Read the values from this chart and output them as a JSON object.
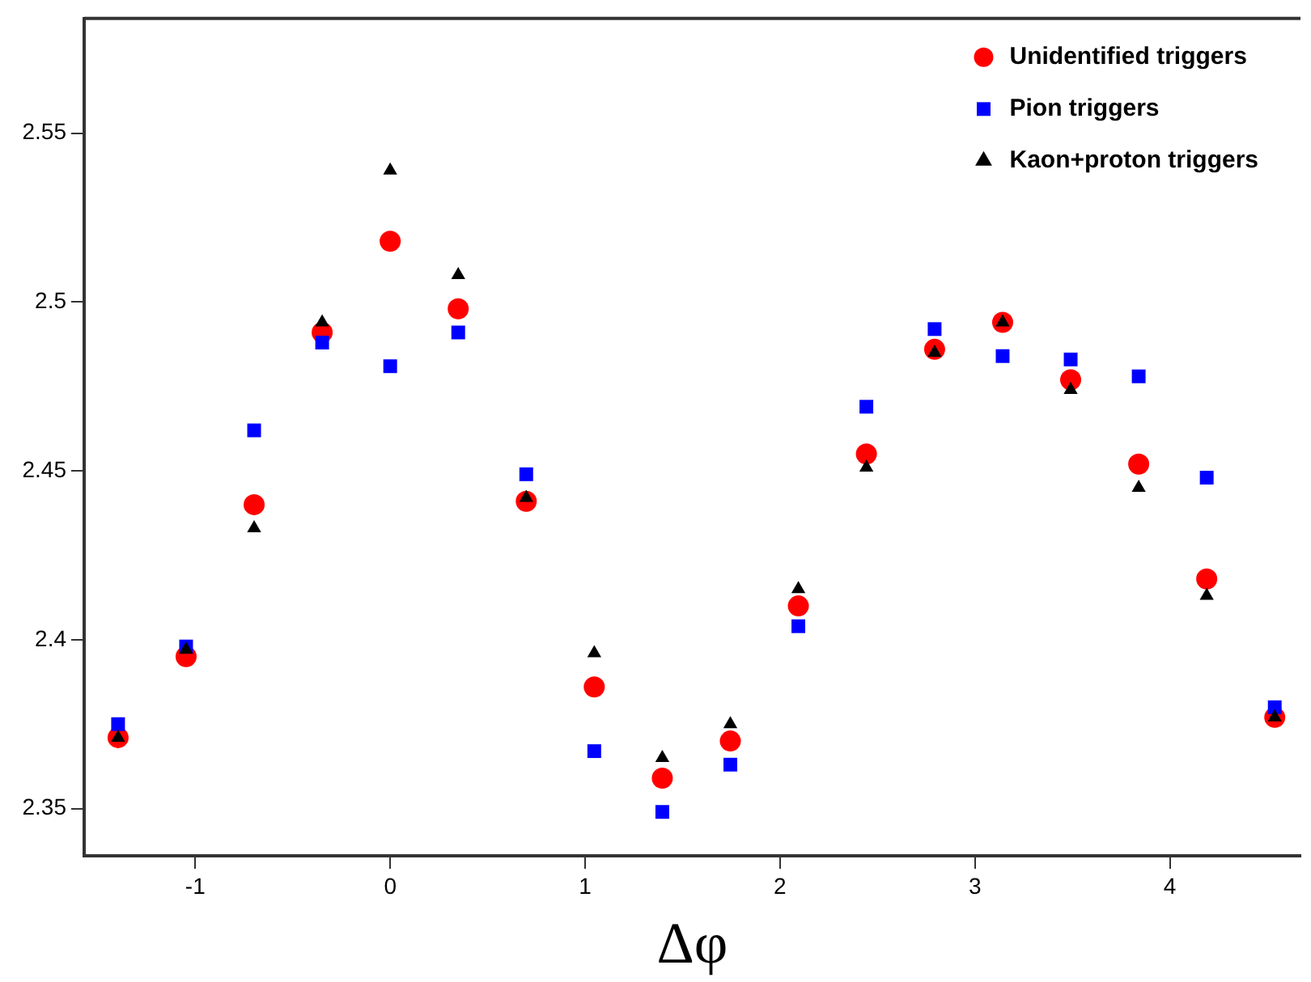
{
  "chart_data": {
    "type": "scatter",
    "xlabel": "Δφ",
    "x": [
      -1.396,
      -1.047,
      -0.698,
      -0.349,
      0,
      0.349,
      0.698,
      1.047,
      1.396,
      1.745,
      2.094,
      2.443,
      2.793,
      3.142,
      3.491,
      3.84,
      4.189,
      4.538
    ],
    "series": [
      {
        "name": "Unidentified triggers",
        "color": "#ff0000",
        "marker": "circle",
        "values": [
          2.371,
          2.395,
          2.44,
          2.491,
          2.518,
          2.498,
          2.441,
          2.386,
          2.359,
          2.37,
          2.41,
          2.455,
          2.486,
          2.494,
          2.477,
          2.452,
          2.418,
          2.377
        ]
      },
      {
        "name": "Pion triggers",
        "color": "#0000ff",
        "marker": "square",
        "values": [
          2.375,
          2.398,
          2.462,
          2.488,
          2.481,
          2.491,
          2.449,
          2.367,
          2.349,
          2.363,
          2.404,
          2.469,
          2.492,
          2.484,
          2.483,
          2.478,
          2.448,
          2.38
        ]
      },
      {
        "name": "Kaon+proton triggers",
        "color": "#000000",
        "marker": "triangle",
        "values": [
          2.371,
          2.397,
          2.433,
          2.494,
          2.539,
          2.508,
          2.442,
          2.396,
          2.365,
          2.375,
          2.415,
          2.451,
          2.485,
          2.494,
          2.474,
          2.445,
          2.413,
          2.377
        ]
      }
    ],
    "xlim": [
      -1.57,
      4.67
    ],
    "xticks": [
      -1,
      0,
      1,
      2,
      3,
      4
    ],
    "ylim": [
      2.336,
      2.584
    ],
    "yticks": [
      2.35,
      2.4,
      2.45,
      2.5,
      2.55
    ],
    "grid": false,
    "legend": "top right"
  }
}
